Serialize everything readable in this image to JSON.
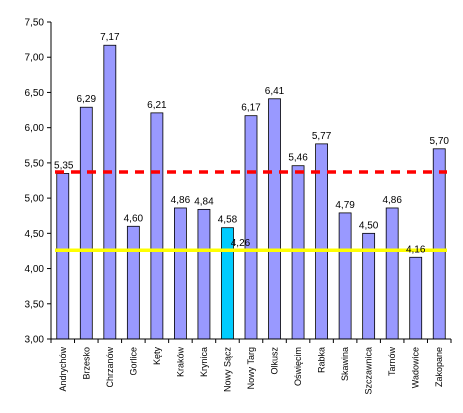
{
  "chart_data": {
    "type": "bar",
    "categories": [
      "Andrychów",
      "Brzesko",
      "Chrzanów",
      "Gorlice",
      "Kęty",
      "Kraków",
      "Krynica",
      "Nowy Sącz",
      "Nowy Targ",
      "Olkusz",
      "Oświęcim",
      "Rabka",
      "Skawina",
      "Szczawnica",
      "Tarnów",
      "Wadowice",
      "Zakopane"
    ],
    "values": [
      5.35,
      6.29,
      7.17,
      4.6,
      6.21,
      4.86,
      4.84,
      4.58,
      6.17,
      6.41,
      5.46,
      5.77,
      4.79,
      4.5,
      4.86,
      4.16,
      5.7
    ],
    "value_labels": [
      "5,35",
      "6,29",
      "7,17",
      "4,60",
      "6,21",
      "4,86",
      "4,84",
      "4,58",
      "6,17",
      "6,41",
      "5,46",
      "5,77",
      "4,79",
      "4,50",
      "4,86",
      "4,16",
      "5,70"
    ],
    "highlight_index": 7,
    "y_ticks": [
      "3,00",
      "3,50",
      "4,00",
      "4,50",
      "5,00",
      "5,50",
      "6,00",
      "6,50",
      "7,00",
      "7,50"
    ],
    "ylim": [
      3.0,
      7.5
    ],
    "reference_lines": [
      {
        "value": 5.37,
        "style": "dashed",
        "color": "#ff0000"
      },
      {
        "value": 4.26,
        "style": "solid",
        "color": "#ffff00",
        "label": "4,26"
      }
    ],
    "colors": {
      "bar": "#9999ff",
      "bar_highlight": "#00ccff",
      "highlight_label": "#33ccff",
      "axis": "#000000",
      "red_line": "#ff0000",
      "yellow_line": "#ffff00"
    },
    "title": "",
    "xlabel": "",
    "ylabel": "",
    "grid": false,
    "legend": "none"
  }
}
